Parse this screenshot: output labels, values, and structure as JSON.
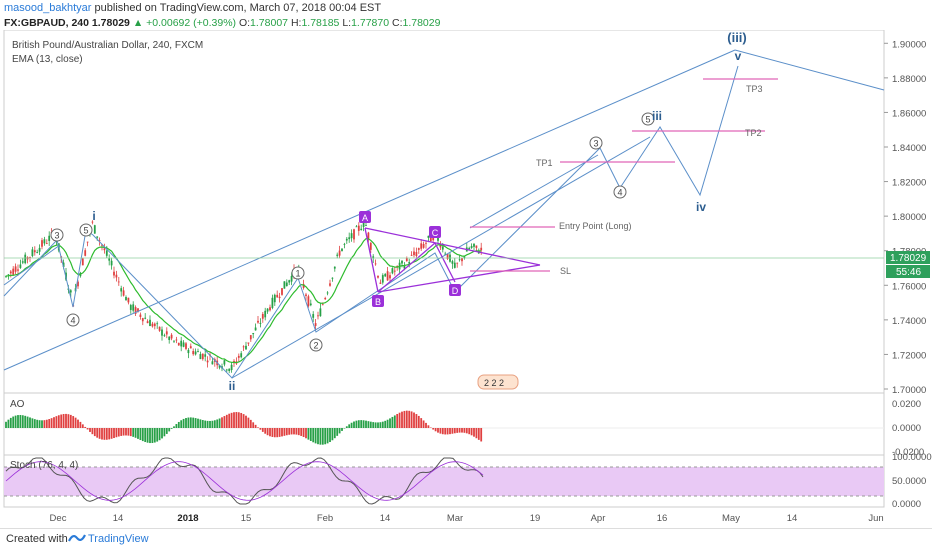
{
  "header": {
    "username": "masood_bakhtyar",
    "published": "published on TradingView.com, March 07, 2018 00:04 EST",
    "symbol": "FX:GBPAUD, 240",
    "price": "1.78029",
    "change": "▲ +0.00692 (+0.39%)",
    "ohlc": {
      "o_label": "O:",
      "o": "1.78007",
      "h_label": "H:",
      "h": "1.78185",
      "l_label": "L:",
      "l": "1.77870",
      "c_label": "C:",
      "c": "1.78029"
    }
  },
  "legend": {
    "instrument": "British Pound/Australian Dollar, 240, FXCM",
    "indicator": "EMA (13, close)",
    "ao": "AO",
    "stoch": "Stoch (76, 4, 4)"
  },
  "price_axis": [
    "1.90000",
    "1.88000",
    "1.86000",
    "1.84000",
    "1.82000",
    "1.80000",
    "1.78000",
    "1.76000",
    "1.74000",
    "1.72000",
    "1.70000"
  ],
  "price_badge": {
    "value": "1.78029",
    "countdown": "55:46"
  },
  "ao_axis": [
    "0.0200",
    "0.0000",
    "-0.0200"
  ],
  "stoch_axis": [
    "100.0000",
    "50.0000",
    "0.0000"
  ],
  "time_axis": [
    "Dec",
    "14",
    "2018",
    "15",
    "Feb",
    "14",
    "Mar",
    "19",
    "Apr",
    "16",
    "May",
    "14",
    "Jun"
  ],
  "colors": {
    "accent": "#2a7bd8",
    "wave_line": "#5b8fc9",
    "triangle": "#9b30d9",
    "target_line": "#e066b8",
    "ema": "#2dbb2d",
    "up": "#27a047",
    "down": "#e04040",
    "stoch_band": "#e9c9f5"
  },
  "chart_data": {
    "type": "candlestick",
    "title": "British Pound/Australian Dollar, 240, FXCM",
    "ylim": [
      1.7,
      1.91
    ],
    "annotations": {
      "waves": [
        {
          "label": "3",
          "price": 1.79
        },
        {
          "label": "4",
          "price": 1.747
        },
        {
          "label": "5",
          "price": 1.793
        },
        {
          "label": "i",
          "price": 1.798
        },
        {
          "label": "ii",
          "price": 1.71
        },
        {
          "label": "1",
          "price": 1.768
        },
        {
          "label": "2",
          "price": 1.735
        },
        {
          "label": "A",
          "price": 1.799
        },
        {
          "label": "B",
          "price": 1.759
        },
        {
          "label": "C",
          "price": 1.789
        },
        {
          "label": "D",
          "price": 1.765
        },
        {
          "label": "3",
          "price": 1.845
        },
        {
          "label": "4",
          "price": 1.826
        },
        {
          "label": "5",
          "price": 1.858
        },
        {
          "label": "iii",
          "price": 1.86
        },
        {
          "label": "iv",
          "price": 1.817
        },
        {
          "label": "v",
          "price": 1.895
        },
        {
          "label": "(iii)",
          "price": 1.905
        }
      ],
      "levels": [
        {
          "label": "Entry Point (Long)",
          "price": 1.799
        },
        {
          "label": "SL",
          "price": 1.771
        },
        {
          "label": "TP1",
          "price": 1.838
        },
        {
          "label": "TP2",
          "price": 1.857
        },
        {
          "label": "TP3",
          "price": 1.888
        }
      ]
    },
    "indicators": {
      "ema": "EMA (13, close)",
      "ao": "AO",
      "stoch": "Stoch (76, 4, 4)"
    },
    "last_price": 1.78029
  },
  "footer": {
    "created": "Created with",
    "brand": "TradingView"
  }
}
